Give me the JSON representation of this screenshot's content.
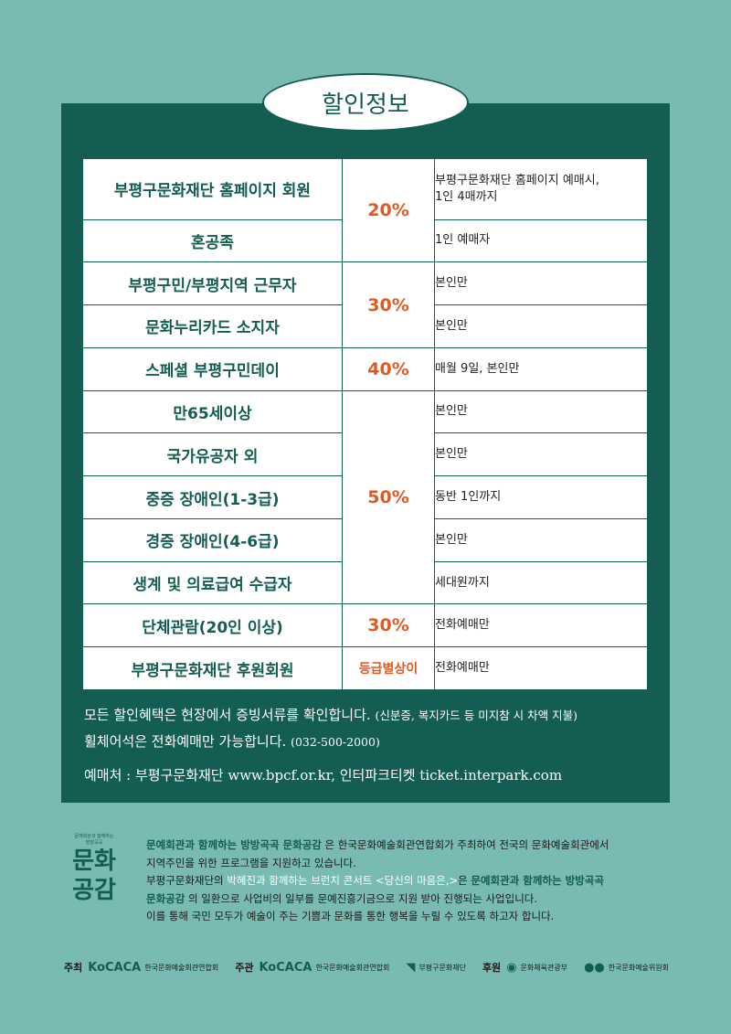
{
  "title": "할인정보",
  "rows": [
    {
      "category": "부평구문화재단 홈페이지 회원",
      "note": "부평구문화재단 홈페이지 예매시,\n1인 4매까지"
    },
    {
      "category": "혼공족",
      "note": "1인 예매자"
    },
    {
      "category": "부평구민/부평지역 근무자",
      "note": "본인만"
    },
    {
      "category": "문화누리카드 소지자",
      "note": "본인만"
    },
    {
      "category": "스페셜 부평구민데이",
      "note": "매월 9일, 본인만"
    },
    {
      "category": "만65세이상",
      "note": "본인만"
    },
    {
      "category": "국가유공자 외",
      "note": "본인만"
    },
    {
      "category": "중증 장애인(1-3급)",
      "note": "동반 1인까지"
    },
    {
      "category": "경증 장애인(4-6급)",
      "note": "본인만"
    },
    {
      "category": "생계 및 의료급여 수급자",
      "note": "세대원까지"
    },
    {
      "category": "단체관람(20인 이상)",
      "note": "전화예매만"
    },
    {
      "category": "부평구문화재단 후원회원",
      "note": "전화예매만"
    }
  ],
  "rates": [
    "20%",
    "30%",
    "40%",
    "50%",
    "30%",
    "등급별상이"
  ],
  "notes": {
    "line1": "모든 할인혜택은 현장에서 증빙서류를 확인합니다.",
    "line1_small": "(신분증, 복지카드 등 미지참 시 차액 지불)",
    "line2": "휠체어석은 전화예매만 가능합니다.",
    "line2_small": "(032-500-2000)",
    "booking": "예매처 : 부평구문화재단 www.bpcf.or.kr, 인터파크티켓 ticket.interpark.com"
  },
  "logo": {
    "tiny1": "문예회관과 함께하는",
    "tiny2": "방방곡곡",
    "big1": "문화",
    "big2": "공감"
  },
  "description": {
    "p1_hl": "문예회관과 함께하는 방방곡곡 문화공감",
    "p1_rest": " 은 한국문화예술회관연합회가 주최하여 전국의 문화예술회관에서",
    "p2": "지역주민을 위한 프로그램을 지원하고 있습니다.",
    "p3_a": "부평구문화재단의 ",
    "p3_lt": "박혜진과 함께하는 브런치 콘서트 <당신의 마음은,>",
    "p3_b": "은 ",
    "p3_hl": "문예회관과 함께하는 방방곡곡",
    "p4_hl": "문화공감",
    "p4_rest": " 의 일환으로 사업비의 일부를 문예진흥기금으로 지원 받아 진행되는 사업입니다.",
    "p5": "이를 통해 국민 모두가 예술이 주는 기쁨과 문화를 통한 행복을 누릴 수 있도록 하고자 합니다."
  },
  "footer": {
    "host_label": "주최",
    "host": "한국문화예술회관연합회",
    "organizer_label": "주관",
    "organizer1": "한국문화예술회관연합회",
    "organizer2": "부평구문화재단",
    "sponsor_label": "후원",
    "sponsor1": "문화체육관광부",
    "sponsor2": "한국문화예술위원회"
  },
  "colors": {
    "background": "#79bab2",
    "panel": "#135d52",
    "accent": "#e05a24"
  }
}
